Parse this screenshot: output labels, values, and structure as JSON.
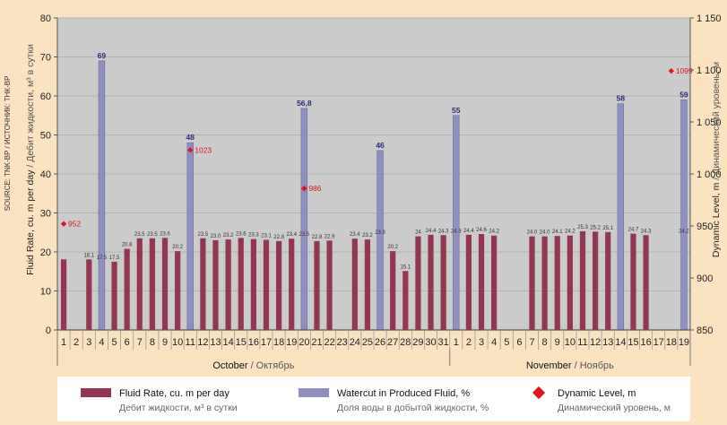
{
  "source_text": "SOURCE: TNK-BP / ИСТОЧНИК: ТНК-ВР",
  "colors": {
    "fluid_bar": "#93364f",
    "watercut_bar": "#8f8fc2",
    "dynamic_marker": "#e0141e",
    "plot_bg": "#cbcbcb",
    "outer_bg": "#fbe3c0",
    "grid": "#b3b3b3",
    "border": "#7d7d7d"
  },
  "chart_data": {
    "type": "bar",
    "categories": [
      "1",
      "2",
      "3",
      "4",
      "5",
      "6",
      "7",
      "8",
      "9",
      "10",
      "11",
      "12",
      "13",
      "14",
      "15",
      "16",
      "17",
      "18",
      "19",
      "20",
      "21",
      "22",
      "23",
      "24",
      "25",
      "26",
      "27",
      "28",
      "29",
      "30",
      "31",
      "1",
      "2",
      "3",
      "4",
      "5",
      "6",
      "7",
      "8",
      "9",
      "10",
      "11",
      "12",
      "13",
      "14",
      "15",
      "16",
      "17",
      "18",
      "19"
    ],
    "months": [
      {
        "label": "October",
        "label_ru": " / Октябрь",
        "start": 0,
        "end": 30
      },
      {
        "label": "November",
        "label_ru": " / Ноябрь",
        "start": 31,
        "end": 49
      }
    ],
    "y_left": {
      "label": "Fluid Rate, cu. m per day",
      "label_ru": " / Дебит жидкости, м³ в сутки",
      "ylim": [
        0,
        80
      ],
      "ticks": [
        "0",
        "10",
        "20",
        "30",
        "40",
        "50",
        "60",
        "70",
        "80"
      ]
    },
    "y_right": {
      "label": "Dynamic Level, m",
      "label_ru": " / Динамический уровень, м",
      "ylim": [
        850,
        1150
      ],
      "ticks": [
        "850",
        "900",
        "950",
        "1 000",
        "1 050",
        "1 100",
        "1 150"
      ]
    },
    "grid": true,
    "legend_position": "bottom",
    "series": [
      {
        "name": "Fluid Rate, cu. m per day",
        "name_ru": "Дебит жидкости, м³ в сутки",
        "type": "bar",
        "axis": "left",
        "values": [
          18.1,
          null,
          18.1,
          17.5,
          17.5,
          20.8,
          23.5,
          23.5,
          23.6,
          20.2,
          null,
          23.5,
          23,
          23.2,
          23.6,
          23.3,
          23.1,
          22.8,
          23.4,
          23.5,
          22.8,
          22.9,
          null,
          23.4,
          23.2,
          23.9,
          20.2,
          15.1,
          24,
          24.4,
          24.3,
          24.3,
          24.4,
          24.6,
          24.2,
          null,
          null,
          24,
          24,
          24.1,
          24.2,
          25.3,
          25.2,
          25.1,
          null,
          24.7,
          24.3,
          null,
          null,
          24.2
        ],
        "labels": [
          "",
          "",
          "18.1",
          "17.5",
          "17.5",
          "20.8",
          "23.5",
          "23.5",
          "23.6",
          "20.2",
          "",
          "23.5",
          "23.0",
          "23.2",
          "23.6",
          "23.3",
          "23.1",
          "22.8",
          "23.4",
          "23.5",
          "22.8",
          "22.9",
          "",
          "23.4",
          "23.2",
          "23.9",
          "20.2",
          "15.1",
          "24",
          "24.4",
          "24.3",
          "24.3",
          "24.4",
          "24.6",
          "24.2",
          "",
          "",
          "24.0",
          "24.0",
          "24.1",
          "24.2",
          "25.3",
          "25.2",
          "25.1",
          "",
          "24.7",
          "24.3",
          "",
          "",
          "24.2"
        ]
      },
      {
        "name": "Watercut in Produced Fluid, %",
        "name_ru": "Доля воды в добытой жидкости, %",
        "type": "bar",
        "axis": "left",
        "points": [
          {
            "index": 3,
            "value": 69,
            "label": "69"
          },
          {
            "index": 10,
            "value": 48,
            "label": "48"
          },
          {
            "index": 19,
            "value": 56.8,
            "label": "56,8"
          },
          {
            "index": 25,
            "value": 46,
            "label": "46"
          },
          {
            "index": 31,
            "value": 55,
            "label": "55"
          },
          {
            "index": 44,
            "value": 58,
            "label": "58"
          },
          {
            "index": 49,
            "value": 59,
            "label": "59"
          }
        ]
      },
      {
        "name": "Dynamic Level, m",
        "name_ru": "Динамический уровень, м",
        "type": "scatter",
        "axis": "right",
        "marker": "diamond",
        "points": [
          {
            "index": 0,
            "value": 952,
            "label": "952"
          },
          {
            "index": 10,
            "value": 1023,
            "label": "1023"
          },
          {
            "index": 19,
            "value": 986,
            "label": "986"
          },
          {
            "index": 48,
            "value": 1099,
            "label": "1099"
          }
        ]
      }
    ]
  }
}
